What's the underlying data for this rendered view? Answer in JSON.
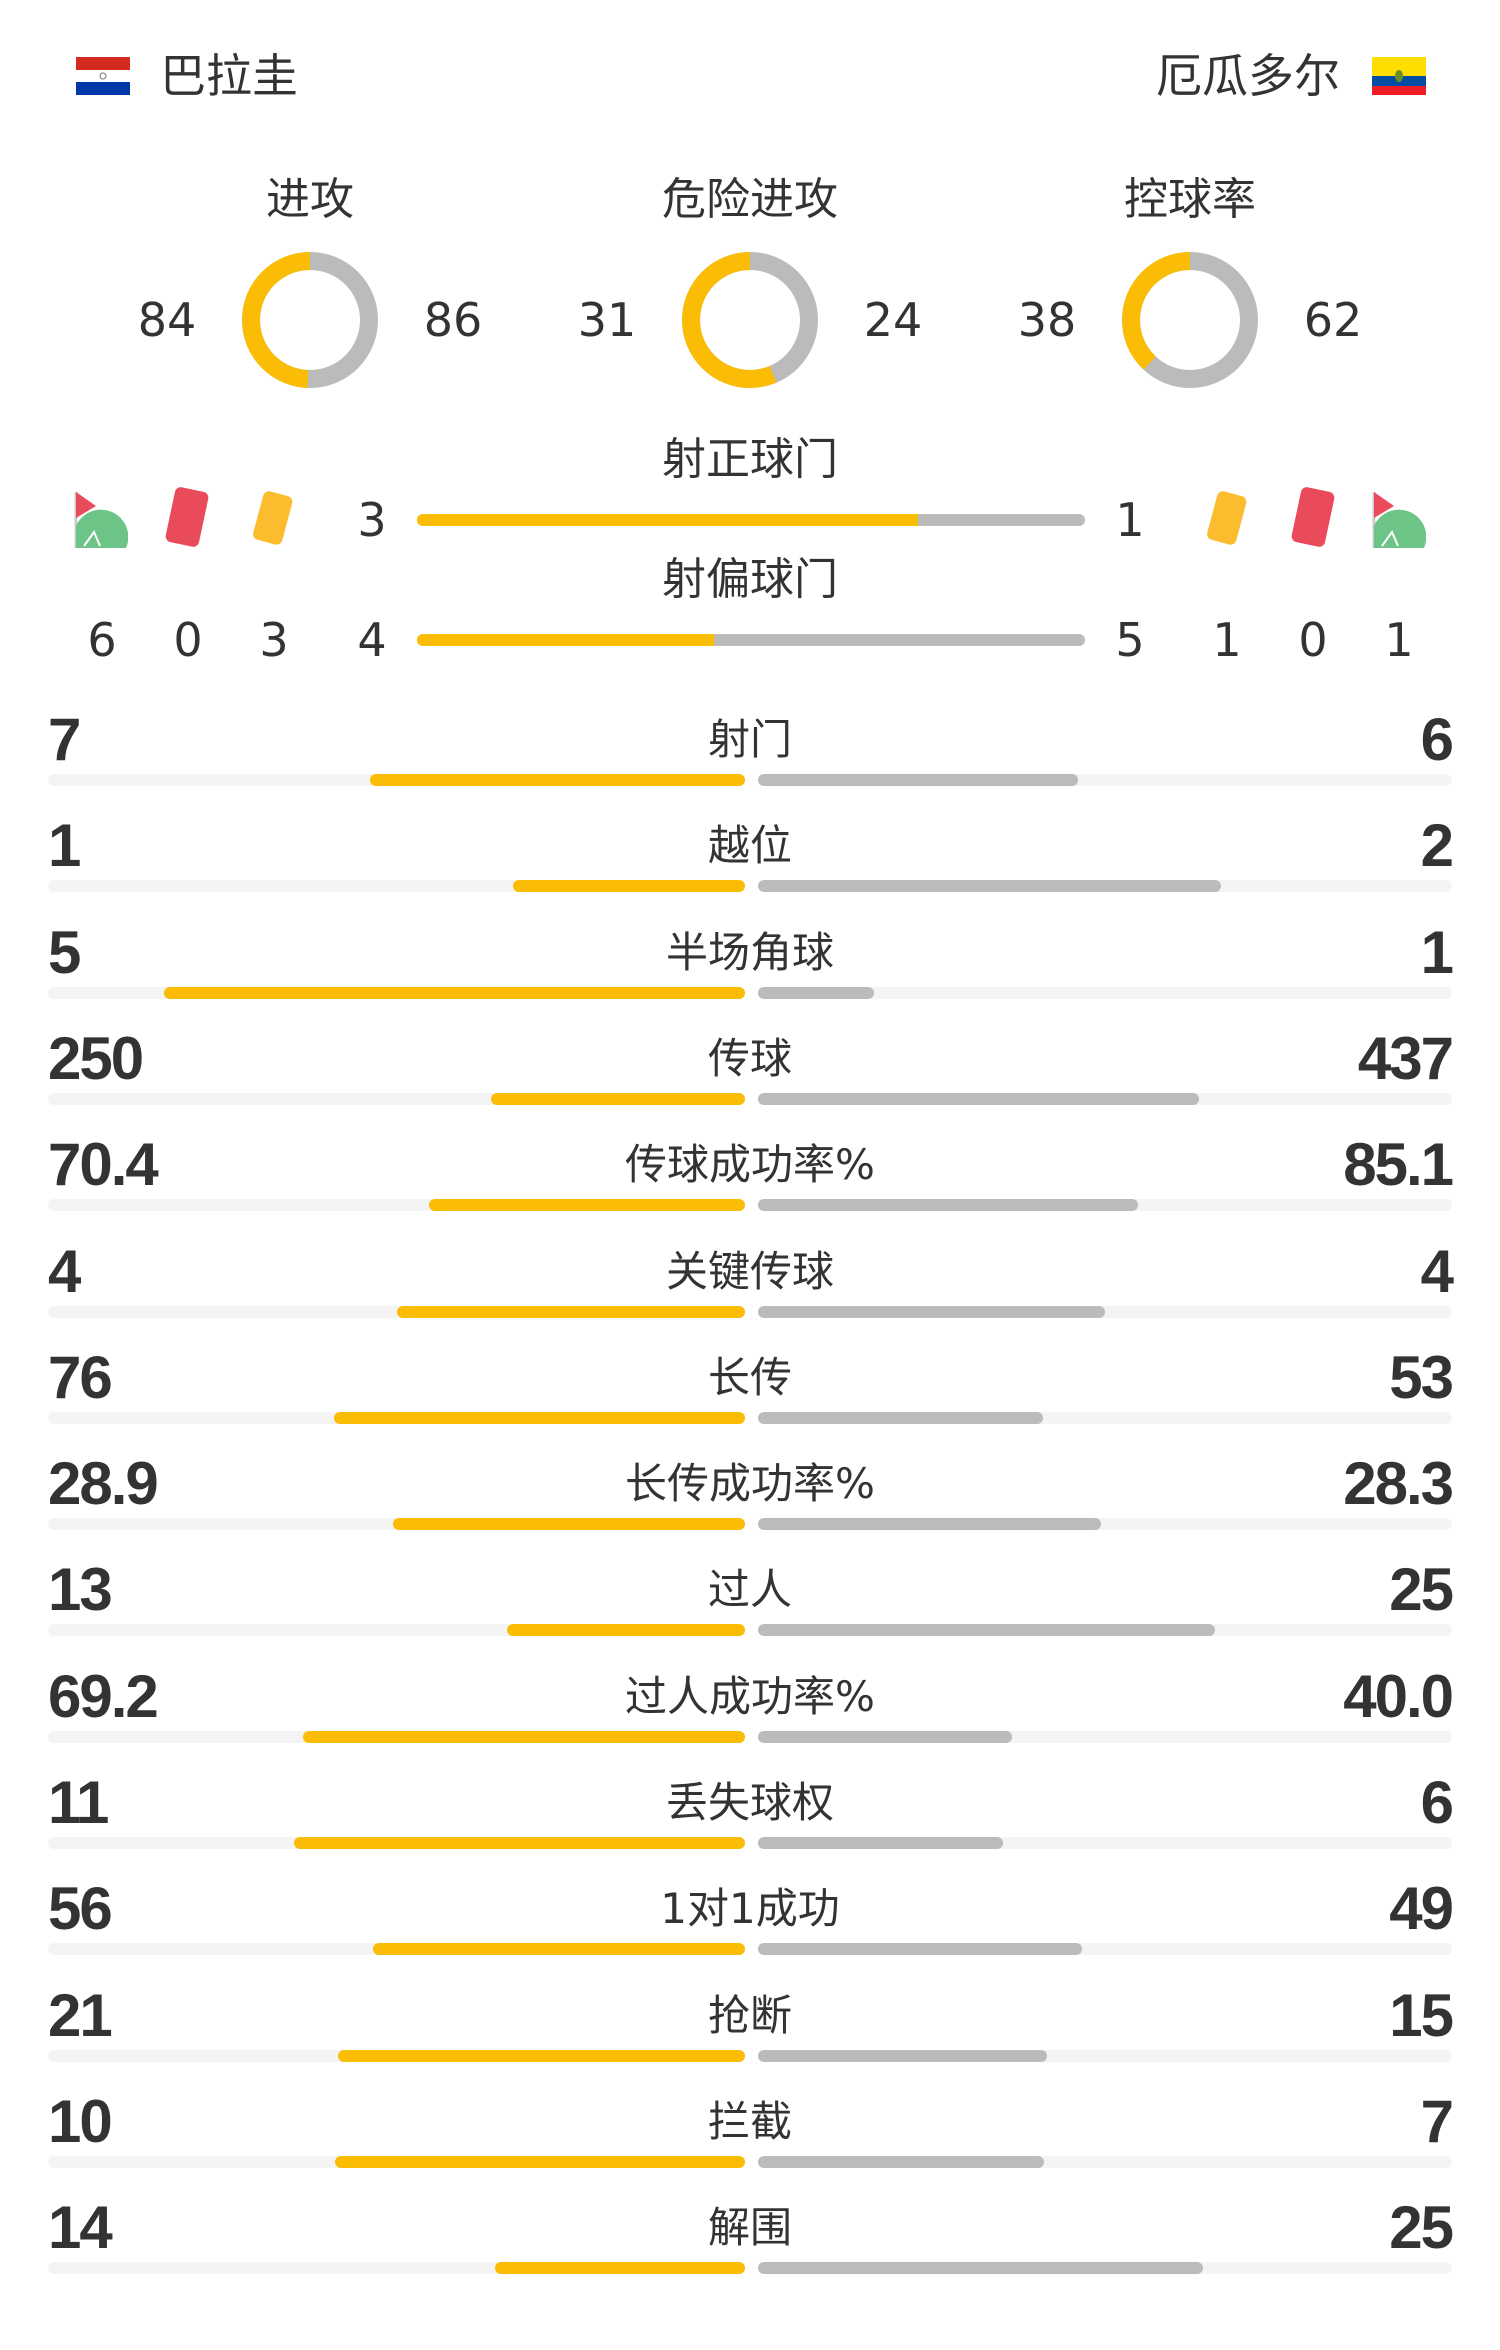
{
  "colors": {
    "home": "#fbbc05",
    "away": "#bbbbbb",
    "track": "#f4f4f4",
    "text": "#333333"
  },
  "home": {
    "name": "巴拉圭",
    "flag_icon": "paraguay-flag-icon"
  },
  "away": {
    "name": "厄瓜多尔",
    "flag_icon": "ecuador-flag-icon"
  },
  "donuts": [
    {
      "label": "进攻",
      "home": 84,
      "away": 86
    },
    {
      "label": "危险进攻",
      "home": 31,
      "away": 24
    },
    {
      "label": "控球率",
      "home": 38,
      "away": 62
    }
  ],
  "shots_on": {
    "label": "射正球门",
    "home": "3",
    "away": "1"
  },
  "shots_off": {
    "label": "射偏球门",
    "home": "4",
    "away": "5"
  },
  "home_counts": {
    "corners": "6",
    "red_cards": "0",
    "yellow_cards": "3"
  },
  "away_counts": {
    "yellow_cards": "1",
    "red_cards": "0",
    "corners": "1"
  },
  "stats": [
    {
      "label": "射门",
      "home": "7",
      "away": "6"
    },
    {
      "label": "越位",
      "home": "1",
      "away": "2"
    },
    {
      "label": "半场角球",
      "home": "5",
      "away": "1"
    },
    {
      "label": "传球",
      "home": "250",
      "away": "437"
    },
    {
      "label": "传球成功率%",
      "home": "70.4",
      "away": "85.1"
    },
    {
      "label": "关键传球",
      "home": "4",
      "away": "4"
    },
    {
      "label": "长传",
      "home": "76",
      "away": "53"
    },
    {
      "label": "长传成功率%",
      "home": "28.9",
      "away": "28.3"
    },
    {
      "label": "过人",
      "home": "13",
      "away": "25"
    },
    {
      "label": "过人成功率%",
      "home": "69.2",
      "away": "40.0"
    },
    {
      "label": "丢失球权",
      "home": "11",
      "away": "6"
    },
    {
      "label": "1对1成功",
      "home": "56",
      "away": "49"
    },
    {
      "label": "抢断",
      "home": "21",
      "away": "15"
    },
    {
      "label": "拦截",
      "home": "10",
      "away": "7"
    },
    {
      "label": "解围",
      "home": "14",
      "away": "25"
    }
  ]
}
